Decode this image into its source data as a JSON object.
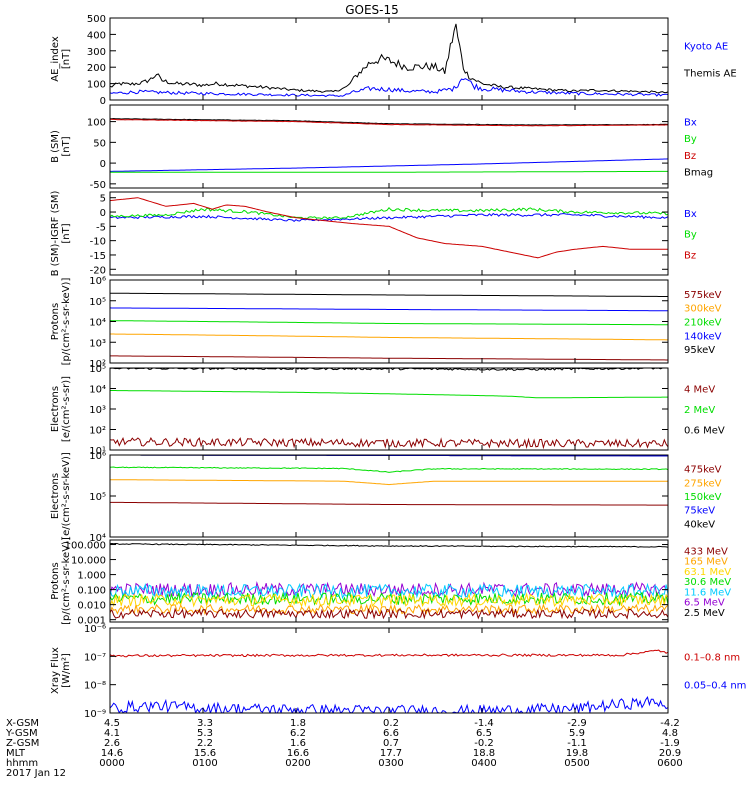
{
  "title": "GOES-15",
  "colors": {
    "black": "#000000",
    "blue": "#0000ff",
    "green": "#00dd00",
    "red": "#cc0000",
    "darkred": "#8b0000",
    "orange": "#ffa500",
    "cyan": "#00ccff",
    "gold": "#ffd700",
    "purple": "#9400d3"
  },
  "chart_data": [
    {
      "id": "ae",
      "type": "line",
      "ylabel": "AE_index\n[nT]",
      "scale": "linear",
      "ylim": [
        0,
        500
      ],
      "yticks": [
        0,
        100,
        200,
        300,
        400,
        500
      ],
      "yticklabels": [
        "0",
        "100",
        "200",
        "300",
        "400",
        "500"
      ],
      "legend": [
        {
          "label": "Kyoto AE",
          "color": "#0000ff"
        },
        {
          "label": "Themis AE",
          "color": "#000000"
        }
      ],
      "series": [
        {
          "name": "Themis AE",
          "color": "#000000",
          "noise": 0.12,
          "x": [
            0,
            0.1,
            0.2,
            0.35,
            0.45,
            0.5,
            0.55,
            0.7,
            0.9,
            1.0,
            1.15,
            1.35,
            1.6,
            1.8,
            2.0,
            2.2,
            2.4,
            2.55,
            2.65,
            2.8,
            2.9,
            3.0,
            3.2,
            3.4,
            3.5,
            3.6,
            3.7,
            3.72,
            3.75,
            3.8,
            3.85,
            3.9,
            4.0,
            4.2,
            4.5,
            4.8,
            5.0,
            5.2,
            5.5,
            5.8,
            6.0
          ],
          "y": [
            80,
            100,
            95,
            105,
            130,
            160,
            120,
            100,
            95,
            90,
            100,
            90,
            80,
            70,
            60,
            55,
            50,
            80,
            150,
            230,
            250,
            240,
            200,
            205,
            200,
            170,
            420,
            440,
            350,
            200,
            150,
            130,
            100,
            80,
            70,
            60,
            55,
            60,
            55,
            50,
            45
          ]
        },
        {
          "name": "Kyoto AE",
          "color": "#0000ff",
          "noise": 0.22,
          "x": [
            0,
            0.3,
            0.6,
            1.0,
            1.5,
            2.0,
            2.5,
            2.6,
            2.8,
            3.0,
            3.2,
            3.5,
            3.7,
            3.8,
            3.9,
            4.0,
            4.5,
            5.0,
            5.5,
            6.0
          ],
          "y": [
            40,
            50,
            45,
            40,
            35,
            30,
            25,
            45,
            70,
            65,
            55,
            50,
            70,
            150,
            90,
            70,
            50,
            40,
            35,
            30
          ]
        }
      ]
    },
    {
      "id": "bsm",
      "type": "line",
      "ylabel": "B (SM)\n[nT]",
      "scale": "linear",
      "ylim": [
        -60,
        140
      ],
      "yticks": [
        -50,
        0,
        50,
        100
      ],
      "yticklabels": [
        "-50",
        "0",
        "50",
        "100"
      ],
      "legend": [
        {
          "label": "Bx",
          "color": "#0000ff"
        },
        {
          "label": "By",
          "color": "#00dd00"
        },
        {
          "label": "Bz",
          "color": "#cc0000"
        },
        {
          "label": "Bmag",
          "color": "#000000"
        }
      ],
      "series": [
        {
          "name": "Bmag",
          "color": "#000000",
          "noise": 0.005,
          "x": [
            0,
            2,
            3,
            4.5,
            6
          ],
          "y": [
            107,
            102,
            95,
            92,
            93
          ]
        },
        {
          "name": "Bz",
          "color": "#cc0000",
          "noise": 0.005,
          "x": [
            0,
            2,
            3,
            4.5,
            6
          ],
          "y": [
            105,
            100,
            93,
            90,
            92
          ]
        },
        {
          "name": "Bx",
          "color": "#0000ff",
          "noise": 0,
          "x": [
            0,
            2,
            4,
            6
          ],
          "y": [
            -20,
            -12,
            -2,
            10
          ]
        },
        {
          "name": "By",
          "color": "#00dd00",
          "noise": 0,
          "x": [
            0,
            3,
            6
          ],
          "y": [
            -22,
            -22,
            -20
          ]
        }
      ]
    },
    {
      "id": "bdiff",
      "type": "line",
      "ylabel": "B (SM)-IGRF (SM)\n[nT]",
      "scale": "linear",
      "ylim": [
        -22,
        7
      ],
      "yticks": [
        -20,
        -15,
        -10,
        -5,
        0,
        5
      ],
      "yticklabels": [
        "-20",
        "-15",
        "-10",
        "-5",
        "0",
        "5"
      ],
      "legend": [
        {
          "label": "Bx",
          "color": "#0000ff"
        },
        {
          "label": "By",
          "color": "#00dd00"
        },
        {
          "label": "Bz",
          "color": "#cc0000"
        }
      ],
      "series": [
        {
          "name": "Bx",
          "color": "#0000ff",
          "noise": 0.07,
          "x": [
            0,
            1,
            2,
            3,
            4,
            5,
            6
          ],
          "y": [
            -2,
            -1.5,
            -3,
            -2,
            -1,
            -1,
            -2
          ]
        },
        {
          "name": "By",
          "color": "#00dd00",
          "noise": 0.06,
          "x": [
            0,
            0.6,
            1.0,
            1.5,
            2.0,
            2.5,
            3.0,
            3.5,
            4.0,
            4.5,
            5.0,
            6.0
          ],
          "y": [
            -1.5,
            -1,
            1,
            0,
            -2,
            -2,
            1,
            0.5,
            0.5,
            1,
            0,
            -0.5
          ]
        },
        {
          "name": "Bz",
          "color": "#cc0000",
          "noise": 0,
          "x": [
            0,
            0.3,
            0.6,
            0.9,
            1.1,
            1.25,
            1.45,
            1.7,
            2.0,
            2.3,
            2.6,
            3.0,
            3.3,
            3.6,
            4.0,
            4.3,
            4.6,
            4.8,
            5.0,
            5.3,
            5.6,
            6.0
          ],
          "y": [
            4,
            5,
            2,
            3,
            1,
            2.5,
            2,
            0,
            -2,
            -3,
            -4,
            -5,
            -9,
            -11,
            -12,
            -14,
            -16,
            -14,
            -13,
            -12,
            -13,
            -13
          ]
        }
      ]
    },
    {
      "id": "protons1",
      "type": "line",
      "ylabel": "Protons\n[p/(cm²-s-sr-keV)]",
      "scale": "log",
      "ylim": [
        100,
        1000000
      ],
      "yticks": [
        100,
        1000,
        10000,
        100000,
        1000000
      ],
      "yticklabels": [
        "10²",
        "10³",
        "10⁴",
        "10⁵",
        "10⁶"
      ],
      "legend": [
        {
          "label": "575keV",
          "color": "#8b0000"
        },
        {
          "label": "300keV",
          "color": "#ffa500"
        },
        {
          "label": "210keV",
          "color": "#00dd00"
        },
        {
          "label": "140keV",
          "color": "#0000ff"
        },
        {
          "label": "95keV",
          "color": "#000000"
        }
      ],
      "series": [
        {
          "name": "95keV",
          "color": "#000000",
          "noise": 0,
          "x": [
            0,
            3,
            6
          ],
          "y": [
            230000,
            190000,
            160000
          ]
        },
        {
          "name": "140keV",
          "color": "#0000ff",
          "noise": 0,
          "x": [
            0,
            3,
            6
          ],
          "y": [
            45000,
            38000,
            33000
          ]
        },
        {
          "name": "210keV",
          "color": "#00dd00",
          "noise": 0,
          "x": [
            0,
            3,
            6
          ],
          "y": [
            11000,
            8000,
            7000
          ]
        },
        {
          "name": "300keV",
          "color": "#ffa500",
          "noise": 0,
          "x": [
            0,
            3,
            6
          ],
          "y": [
            2500,
            1700,
            1300
          ]
        },
        {
          "name": "575keV",
          "color": "#8b0000",
          "noise": 0,
          "x": [
            0,
            3,
            6
          ],
          "y": [
            220,
            170,
            140
          ]
        }
      ]
    },
    {
      "id": "electrons1",
      "type": "line",
      "ylabel": "Electrons\n[e/(cm²-s-sr)]",
      "scale": "log",
      "ylim": [
        10,
        100000
      ],
      "yticks": [
        10,
        100,
        1000,
        10000,
        100000
      ],
      "yticklabels": [
        "10¹",
        "10²",
        "10³",
        "10⁴",
        "10⁵"
      ],
      "legend": [
        {
          "label": "4 MeV",
          "color": "#8b0000"
        },
        {
          "label": "2 MeV",
          "color": "#00dd00"
        },
        {
          "label": "0.6 MeV",
          "color": "#000000"
        }
      ],
      "series": [
        {
          "name": "0.6 MeV",
          "color": "#000000",
          "noise": 0.05,
          "x": [
            0,
            3,
            4.5,
            6
          ],
          "y": [
            95000,
            92000,
            85000,
            100000
          ]
        },
        {
          "name": "2 MeV",
          "color": "#00dd00",
          "noise": 0,
          "x": [
            0,
            2,
            4.3,
            4.6,
            6
          ],
          "y": [
            8000,
            6500,
            4200,
            3500,
            3800
          ]
        },
        {
          "name": "4 MeV",
          "color": "#8b0000",
          "noise": 0.2,
          "x": [
            0,
            3,
            6
          ],
          "y": [
            25,
            22,
            20
          ]
        }
      ]
    },
    {
      "id": "electrons2",
      "type": "line",
      "ylabel": "Electrons\n[e/(cm²-s-sr-keV)]",
      "scale": "log",
      "ylim": [
        10000,
        1000000
      ],
      "yticks": [
        10000,
        100000,
        1000000
      ],
      "yticklabels": [
        "10⁴",
        "10⁵",
        "10⁶"
      ],
      "legend": [
        {
          "label": "475keV",
          "color": "#8b0000"
        },
        {
          "label": "275keV",
          "color": "#ffa500"
        },
        {
          "label": "150keV",
          "color": "#00dd00"
        },
        {
          "label": "75keV",
          "color": "#0000ff"
        },
        {
          "label": "40keV",
          "color": "#000000"
        }
      ],
      "series": [
        {
          "name": "40keV",
          "color": "#000000",
          "noise": 0,
          "x": [
            0,
            6
          ],
          "y": [
            1000000,
            950000
          ]
        },
        {
          "name": "75keV",
          "color": "#0000ff",
          "noise": 0,
          "x": [
            0,
            6
          ],
          "y": [
            1000000,
            950000
          ]
        },
        {
          "name": "150keV",
          "color": "#00dd00",
          "noise": 0.01,
          "x": [
            0,
            2.5,
            3.0,
            3.5,
            6
          ],
          "y": [
            500000,
            470000,
            380000,
            460000,
            450000
          ]
        },
        {
          "name": "275keV",
          "color": "#ffa500",
          "noise": 0,
          "x": [
            0,
            2.5,
            3.0,
            3.5,
            6
          ],
          "y": [
            250000,
            230000,
            190000,
            230000,
            230000
          ]
        },
        {
          "name": "475keV",
          "color": "#8b0000",
          "noise": 0,
          "x": [
            0,
            3,
            6
          ],
          "y": [
            70000,
            62000,
            60000
          ]
        }
      ]
    },
    {
      "id": "protons2",
      "type": "line",
      "ylabel": "Protons\n[p/(cm²-s-sr-keV)]",
      "scale": "log",
      "ylim": [
        0.0007,
        200
      ],
      "yticks": [
        0.001,
        0.01,
        0.1,
        1,
        10,
        100
      ],
      "yticklabels": [
        "0.001",
        "0.010",
        "0.100",
        "1.000",
        "10.000",
        "100.000"
      ],
      "legend": [
        {
          "label": "433 MeV",
          "color": "#8b0000"
        },
        {
          "label": "165 MeV",
          "color": "#ffa500"
        },
        {
          "label": "63.1 MeV",
          "color": "#ffd700"
        },
        {
          "label": "30.6 MeV",
          "color": "#00dd00"
        },
        {
          "label": "11.6 MeV",
          "color": "#00ccff"
        },
        {
          "label": "6.5 MeV",
          "color": "#9400d3"
        },
        {
          "label": "2.5 MeV",
          "color": "#000000"
        }
      ],
      "series": [
        {
          "name": "2.5 MeV",
          "color": "#000000",
          "noise": 0.03,
          "x": [
            0,
            3,
            6
          ],
          "y": [
            110,
            80,
            70
          ]
        },
        {
          "name": "6.5 MeV",
          "color": "#9400d3",
          "noise": 0.45,
          "x": [
            0,
            6
          ],
          "y": [
            0.1,
            0.1
          ]
        },
        {
          "name": "11.6 MeV",
          "color": "#00ccff",
          "noise": 0.45,
          "x": [
            0,
            6
          ],
          "y": [
            0.08,
            0.08
          ]
        },
        {
          "name": "30.6 MeV",
          "color": "#00dd00",
          "noise": 0.4,
          "x": [
            0,
            6
          ],
          "y": [
            0.025,
            0.025
          ]
        },
        {
          "name": "63.1 MeV",
          "color": "#ffd700",
          "noise": 0.4,
          "x": [
            0,
            6
          ],
          "y": [
            0.02,
            0.02
          ]
        },
        {
          "name": "165 MeV",
          "color": "#ffa500",
          "noise": 0.3,
          "x": [
            0,
            6
          ],
          "y": [
            0.005,
            0.005
          ]
        },
        {
          "name": "433 MeV",
          "color": "#8b0000",
          "noise": 0.3,
          "x": [
            0,
            6
          ],
          "y": [
            0.0025,
            0.0025
          ]
        }
      ]
    },
    {
      "id": "xray",
      "type": "line",
      "ylabel": "Xray Flux\n[W/m²]",
      "scale": "log",
      "ylim": [
        1e-09,
        1e-06
      ],
      "yticks": [
        1e-09,
        1e-08,
        1e-07,
        1e-06
      ],
      "yticklabels": [
        "10⁻⁹",
        "10⁻⁸",
        "10⁻⁷",
        "10⁻⁶"
      ],
      "legend": [
        {
          "label": "0.1–0.8 nm",
          "color": "#cc0000"
        },
        {
          "label": "0.05–0.4 nm",
          "color": "#0000ff"
        }
      ],
      "series": [
        {
          "name": "0.1–0.8 nm",
          "color": "#cc0000",
          "noise": 0.04,
          "x": [
            0,
            3,
            5.5,
            5.9,
            6
          ],
          "y": [
            1.05e-07,
            1.1e-07,
            1.1e-07,
            1.6e-07,
            1.3e-07
          ]
        },
        {
          "name": "0.05–0.4 nm",
          "color": "#0000ff",
          "noise": 0.2,
          "x": [
            0,
            0.5,
            1.0,
            2.0,
            3.0,
            4.0,
            5.0,
            5.9,
            6.0
          ],
          "y": [
            1.5e-09,
            1.8e-09,
            1.5e-09,
            1.3e-09,
            1.2e-09,
            1.2e-09,
            1.4e-09,
            2.5e-09,
            1.8e-09
          ]
        }
      ]
    }
  ],
  "footer": {
    "rows": [
      {
        "label": "X-GSM",
        "values": [
          "4.5",
          "3.3",
          "1.8",
          "0.2",
          "-1.4",
          "-2.9",
          "-4.2"
        ]
      },
      {
        "label": "Y-GSM",
        "values": [
          "4.1",
          "5.3",
          "6.2",
          "6.6",
          "6.5",
          "5.9",
          "4.8"
        ]
      },
      {
        "label": "Z-GSM",
        "values": [
          "2.6",
          "2.2",
          "1.6",
          "0.7",
          "-0.2",
          "-1.1",
          "-1.9"
        ]
      },
      {
        "label": "MLT",
        "values": [
          "14.6",
          "15.6",
          "16.6",
          "17.7",
          "18.8",
          "19.8",
          "20.9"
        ]
      },
      {
        "label": "hhmm",
        "values": [
          "0000",
          "0100",
          "0200",
          "0300",
          "0400",
          "0500",
          "0600"
        ]
      }
    ],
    "date": "2017 Jan 12"
  }
}
